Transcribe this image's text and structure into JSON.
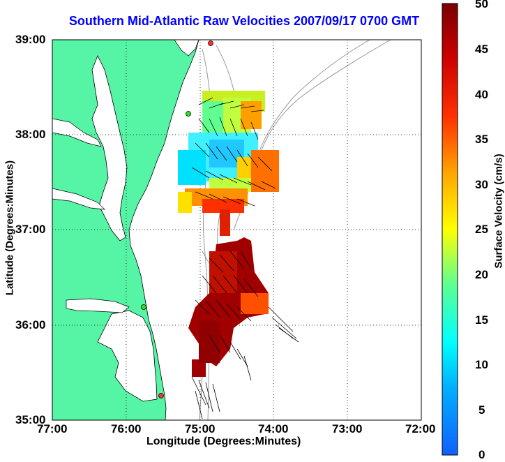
{
  "title": "Southern Mid-Atlantic Raw Velocities 2007/09/17 0700 GMT",
  "xlabel": "Longitude (Degrees:Minutes)",
  "ylabel": "Latitude (Degrees:Minutes)",
  "x_ticks": [
    "77:00",
    "76:00",
    "75:00",
    "74:00",
    "73:00",
    "72:00"
  ],
  "y_ticks": [
    "39:00",
    "38:00",
    "37:00",
    "36:00",
    "35:00"
  ],
  "colorbar": {
    "label": "Surface Velocity (cm/s)",
    "ticks": [
      "50",
      "45",
      "40",
      "35",
      "30",
      "25",
      "20",
      "15",
      "10",
      "5",
      "0"
    ],
    "min": 0,
    "max": 50
  },
  "colors": {
    "land": "#55f5a5",
    "coast": "#000000",
    "bathymetry": "#999999",
    "title": "#0000ff",
    "station": "#ff3030"
  }
}
